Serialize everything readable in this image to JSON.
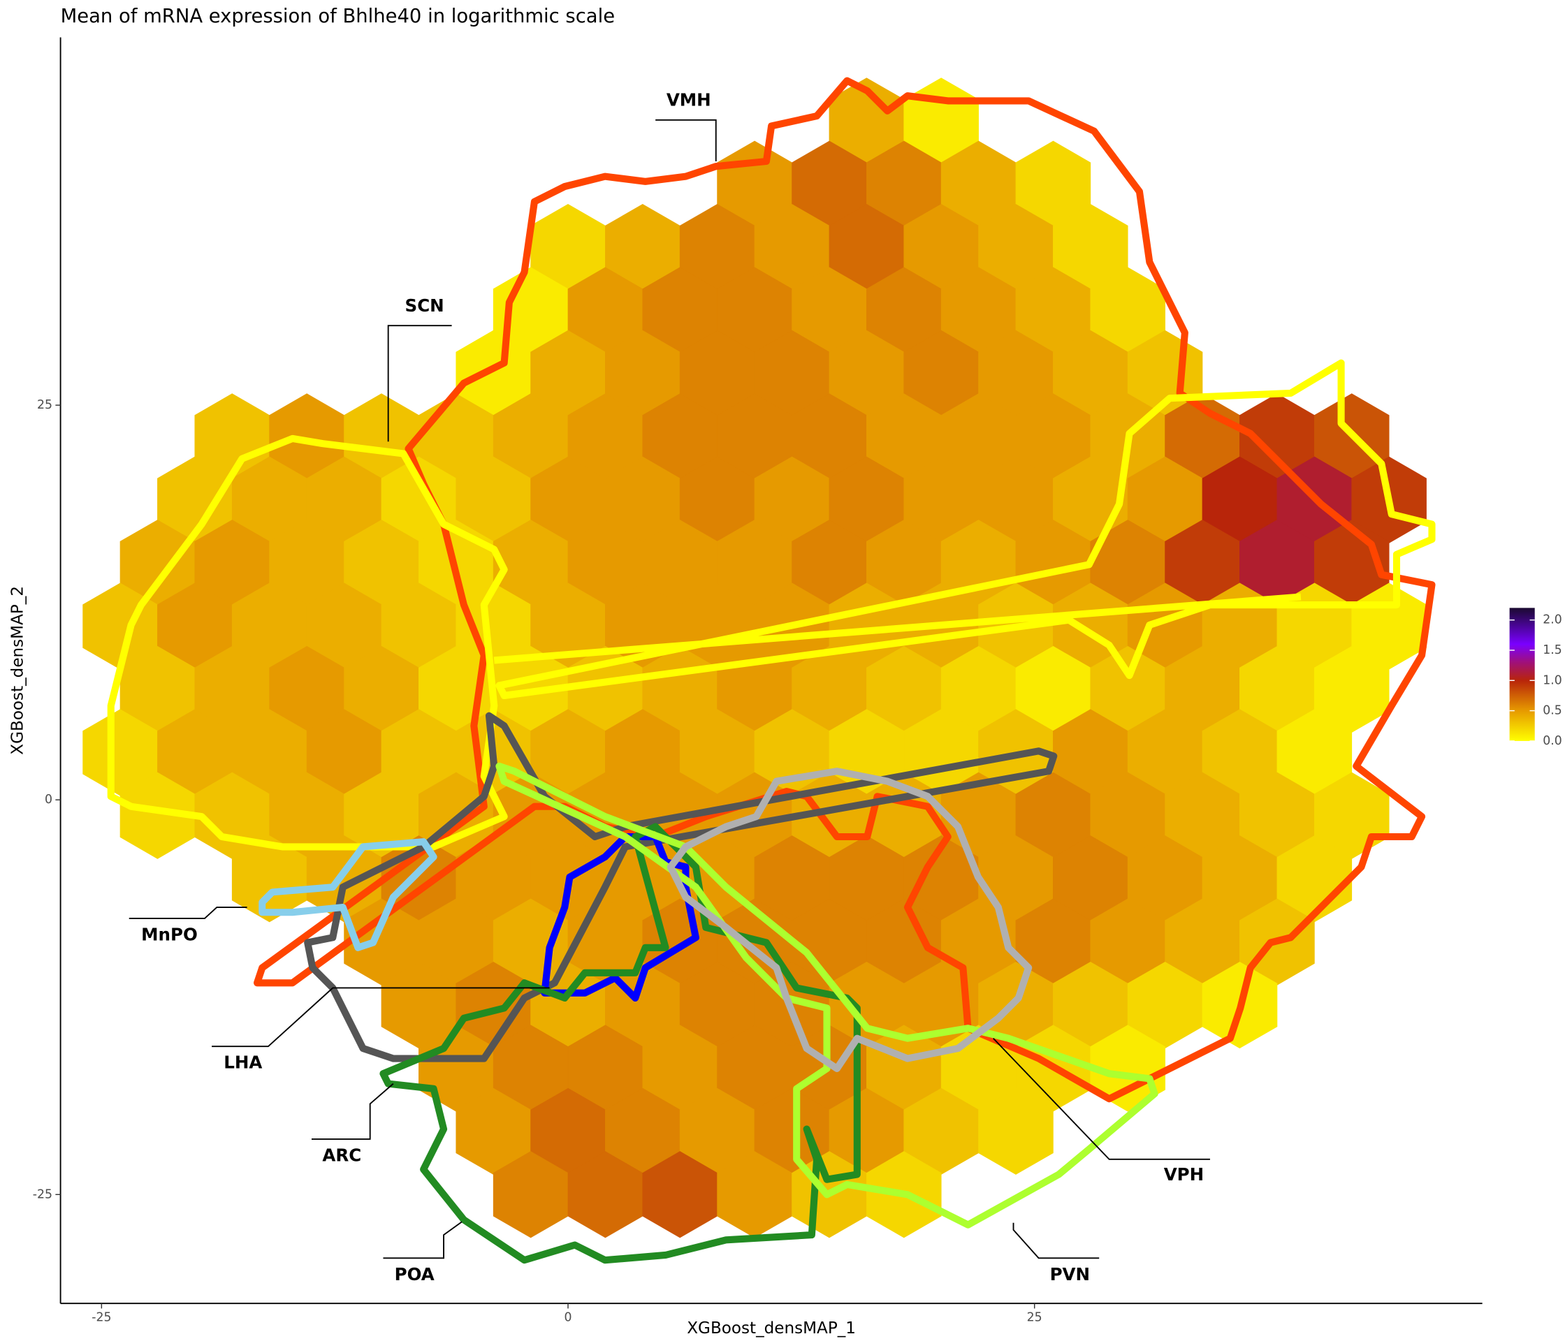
{
  "chart_data": {
    "type": "hexbin",
    "title": "Mean of mRNA expression of Bhlhe40 in logarithmic scale",
    "x_label": "XGBoost_densMAP_1",
    "y_label": "XGBoost_densMAP_2",
    "xlim": [
      -27.2,
      49.0
    ],
    "ylim": [
      -31.9,
      48.3
    ],
    "xticks": [
      -25,
      0,
      25
    ],
    "yticks": [
      -25,
      0,
      25
    ],
    "colorbar_lim": [
      0,
      2.2
    ],
    "colorbar_ticks": [
      {
        "value": 0,
        "label": "0.0"
      },
      {
        "value": 0.5,
        "label": "0.5"
      },
      {
        "value": 1,
        "label": "1.0"
      },
      {
        "value": 1.5,
        "label": "1.5"
      },
      {
        "value": 2,
        "label": "2.0"
      }
    ],
    "colorscale": [
      [
        0,
        "#ffff00"
      ],
      [
        0.5,
        "#e69a00"
      ],
      [
        1,
        "#b8250a"
      ],
      [
        1.3,
        "#a0107a"
      ],
      [
        1.6,
        "#7a00ff"
      ],
      [
        2.2,
        "#1a0a30"
      ]
    ],
    "regions": [
      {
        "name": "VMH",
        "color": "#ff4500"
      },
      {
        "name": "SCN",
        "color": "#ffff00"
      },
      {
        "name": "MnPO",
        "color": "#87ceeb"
      },
      {
        "name": "LHA",
        "color": "#555555"
      },
      {
        "name": "ARC",
        "color": "#0000ff"
      },
      {
        "name": "POA",
        "color": "#228b22"
      },
      {
        "name": "PVN",
        "color": "#adff2f"
      },
      {
        "name": "VPH",
        "color": "#b0b0b0"
      }
    ],
    "hex_rows": [
      {
        "y": 43,
        "x": [
          16,
          20
        ],
        "values": [
          0.4,
          0.1
        ]
      },
      {
        "y": 39,
        "x": [
          10,
          14,
          18,
          22,
          26
        ],
        "values": [
          0.5,
          0.7,
          0.6,
          0.4,
          0.2
        ]
      },
      {
        "y": 35,
        "x": [
          0,
          4,
          8,
          12,
          16,
          20,
          24,
          28
        ],
        "values": [
          0.2,
          0.4,
          0.6,
          0.5,
          0.7,
          0.5,
          0.4,
          0.2
        ]
      },
      {
        "y": 31,
        "x": [
          -2,
          2,
          6,
          10,
          14,
          18,
          22,
          26,
          30
        ],
        "values": [
          0.1,
          0.5,
          0.6,
          0.6,
          0.5,
          0.6,
          0.5,
          0.4,
          0.2
        ]
      },
      {
        "y": 27,
        "x": [
          -4,
          0,
          4,
          8,
          12,
          16,
          20,
          24,
          28,
          32
        ],
        "values": [
          0.1,
          0.4,
          0.5,
          0.6,
          0.6,
          0.5,
          0.6,
          0.5,
          0.4,
          0.3
        ]
      },
      {
        "y": 23,
        "x": [
          -18,
          -14,
          -10,
          -6,
          -2,
          2,
          6,
          10,
          14,
          18,
          22,
          26,
          30,
          34,
          38,
          42
        ],
        "values": [
          0.3,
          0.5,
          0.3,
          0.3,
          0.4,
          0.5,
          0.6,
          0.6,
          0.6,
          0.5,
          0.5,
          0.5,
          0.4,
          0.7,
          0.9,
          0.8
        ]
      },
      {
        "y": 19,
        "x": [
          -20,
          -16,
          -12,
          -8,
          -4,
          0,
          4,
          8,
          12,
          16,
          20,
          24,
          28,
          32,
          36,
          40,
          44
        ],
        "values": [
          0.3,
          0.4,
          0.4,
          0.2,
          0.3,
          0.5,
          0.5,
          0.6,
          0.5,
          0.6,
          0.5,
          0.5,
          0.4,
          0.5,
          1.0,
          1.1,
          0.9
        ]
      },
      {
        "y": 15,
        "x": [
          -22,
          -18,
          -14,
          -10,
          -6,
          -2,
          2,
          6,
          10,
          14,
          18,
          22,
          26,
          30,
          34,
          38,
          42
        ],
        "values": [
          0.4,
          0.5,
          0.4,
          0.3,
          0.2,
          0.4,
          0.5,
          0.5,
          0.5,
          0.6,
          0.5,
          0.4,
          0.5,
          0.6,
          0.9,
          1.1,
          0.9
        ]
      },
      {
        "y": 11,
        "x": [
          -24,
          -20,
          -16,
          -12,
          -8,
          -4,
          0,
          4,
          8,
          12,
          16,
          20,
          24,
          28,
          32,
          36,
          40,
          44
        ],
        "values": [
          0.3,
          0.5,
          0.4,
          0.4,
          0.3,
          0.2,
          0.4,
          0.5,
          0.5,
          0.5,
          0.4,
          0.4,
          0.3,
          0.4,
          0.5,
          0.4,
          0.2,
          0.1
        ]
      },
      {
        "y": 7,
        "x": [
          -22,
          -18,
          -14,
          -10,
          -6,
          -2,
          2,
          6,
          10,
          14,
          18,
          22,
          26,
          30,
          34,
          38,
          42
        ],
        "values": [
          0.3,
          0.4,
          0.5,
          0.4,
          0.2,
          0.2,
          0.3,
          0.4,
          0.5,
          0.4,
          0.3,
          0.2,
          0.1,
          0.3,
          0.4,
          0.2,
          0.1
        ]
      },
      {
        "y": 3,
        "x": [
          -24,
          -20,
          -16,
          -12,
          -8,
          -4,
          0,
          4,
          8,
          12,
          16,
          20,
          24,
          28,
          32,
          36,
          40
        ],
        "values": [
          0.2,
          0.4,
          0.4,
          0.5,
          0.3,
          0.3,
          0.4,
          0.5,
          0.4,
          0.3,
          0.2,
          0.2,
          0.3,
          0.5,
          0.4,
          0.3,
          0.1
        ]
      },
      {
        "y": -1,
        "x": [
          -22,
          -18,
          -14,
          -10,
          -6,
          -2,
          2,
          6,
          10,
          14,
          18,
          22,
          26,
          30,
          34,
          38,
          42
        ],
        "values": [
          0.2,
          0.3,
          0.4,
          0.3,
          0.4,
          0.5,
          0.5,
          0.5,
          0.5,
          0.4,
          0.4,
          0.5,
          0.6,
          0.5,
          0.4,
          0.3,
          0.2
        ]
      },
      {
        "y": -5,
        "x": [
          -16,
          -12,
          -8,
          -4,
          0,
          4,
          8,
          12,
          16,
          20,
          24,
          28,
          32,
          36,
          40
        ],
        "values": [
          0.3,
          0.4,
          0.6,
          0.5,
          0.5,
          0.5,
          0.5,
          0.6,
          0.6,
          0.6,
          0.5,
          0.6,
          0.5,
          0.4,
          0.2
        ]
      },
      {
        "y": -9,
        "x": [
          -10,
          -6,
          -2,
          2,
          6,
          10,
          14,
          18,
          22,
          26,
          30,
          34,
          38
        ],
        "values": [
          0.5,
          0.5,
          0.4,
          0.5,
          0.6,
          0.6,
          0.6,
          0.6,
          0.5,
          0.6,
          0.5,
          0.4,
          0.3
        ]
      },
      {
        "y": -13,
        "x": [
          -8,
          -4,
          0,
          4,
          8,
          12,
          16,
          20,
          24,
          28,
          32,
          36
        ],
        "values": [
          0.5,
          0.6,
          0.4,
          0.5,
          0.6,
          0.6,
          0.5,
          0.5,
          0.4,
          0.3,
          0.2,
          0.1
        ]
      },
      {
        "y": -17,
        "x": [
          -6,
          -2,
          2,
          6,
          10,
          14,
          18,
          22,
          26,
          30
        ],
        "values": [
          0.5,
          0.6,
          0.6,
          0.5,
          0.6,
          0.6,
          0.4,
          0.2,
          0.2,
          0.1
        ]
      },
      {
        "y": -21,
        "x": [
          -4,
          0,
          4,
          8,
          12,
          16,
          20,
          24
        ],
        "values": [
          0.5,
          0.7,
          0.6,
          0.5,
          0.6,
          0.5,
          0.3,
          0.2
        ]
      },
      {
        "y": -25,
        "x": [
          -2,
          2,
          6,
          10,
          14,
          18
        ],
        "values": [
          0.6,
          0.7,
          0.8,
          0.5,
          0.3,
          0.2
        ]
      }
    ]
  }
}
